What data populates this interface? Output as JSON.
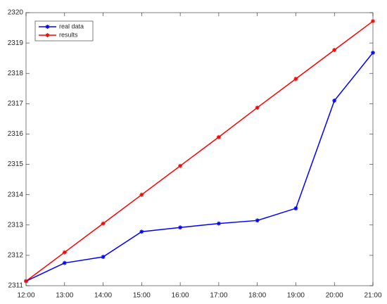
{
  "chart_data": {
    "type": "line",
    "categories": [
      "12:00",
      "13:00",
      "14:00",
      "15:00",
      "16:00",
      "17:00",
      "18:00",
      "19:00",
      "20:00",
      "21:00"
    ],
    "series": [
      {
        "name": "real data",
        "color": "#0000ff",
        "values": [
          2311.15,
          2311.75,
          2311.95,
          2312.78,
          2312.92,
          2313.05,
          2313.15,
          2313.55,
          2317.1,
          2318.68
        ]
      },
      {
        "name": "results",
        "color": "#ff0000",
        "values": [
          2311.15,
          2312.1,
          2313.05,
          2314.0,
          2314.95,
          2315.9,
          2316.87,
          2317.82,
          2318.77,
          2319.72
        ]
      }
    ],
    "ylim": [
      2311,
      2320
    ],
    "yticks": [
      2311,
      2312,
      2313,
      2314,
      2315,
      2316,
      2317,
      2318,
      2319,
      2320
    ],
    "legend": "northwest",
    "grid": false
  }
}
